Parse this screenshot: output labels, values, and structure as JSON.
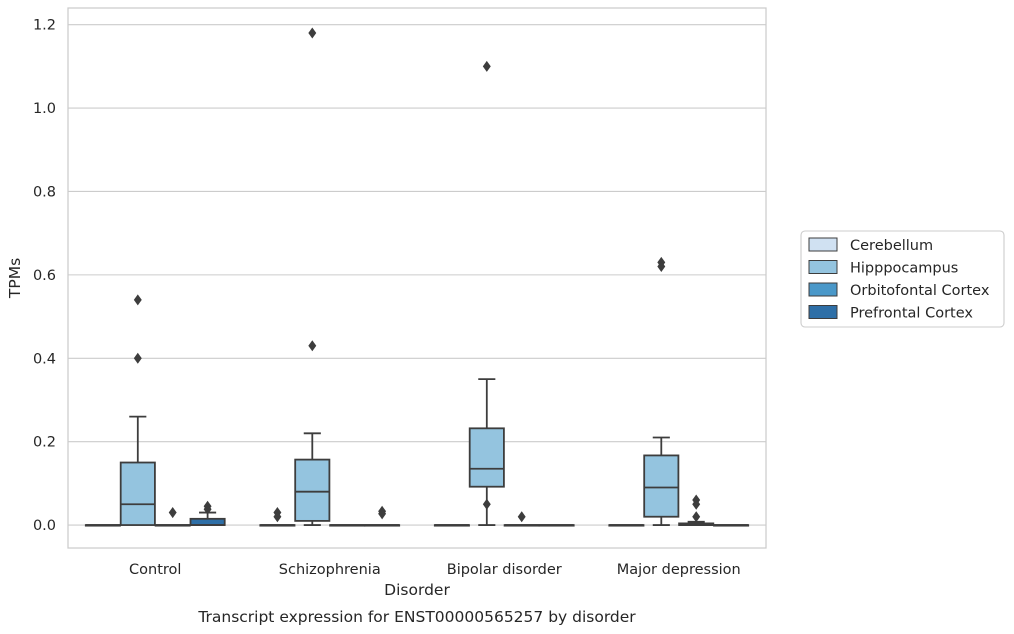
{
  "chart_data": {
    "type": "boxplot",
    "caption": "Transcript expression for ENST00000565257 by disorder",
    "xlabel": "Disorder",
    "ylabel": "TPMs",
    "ylim": [
      -0.055,
      1.24
    ],
    "yticks": [
      0.0,
      0.2,
      0.4,
      0.6,
      0.8,
      1.0,
      1.2
    ],
    "ytick_labels": [
      "0.0",
      "0.2",
      "0.4",
      "0.6",
      "0.8",
      "1.0",
      "1.2"
    ],
    "grid": "horizontal",
    "legend_position": "right",
    "categories": [
      "Control",
      "Schizophrenia",
      "Bipolar disorder",
      "Major depression"
    ],
    "series": [
      {
        "name": "Cerebellum",
        "color": "#d0e1f2",
        "boxes": [
          {
            "q1": 0,
            "median": 0,
            "q3": 0,
            "whisker_low": 0,
            "whisker_high": 0,
            "outliers": []
          },
          {
            "q1": 0,
            "median": 0,
            "q3": 0,
            "whisker_low": 0,
            "whisker_high": 0,
            "outliers": [
              0.03,
              0.02
            ]
          },
          {
            "q1": 0,
            "median": 0,
            "q3": 0,
            "whisker_low": 0,
            "whisker_high": 0,
            "outliers": []
          },
          {
            "q1": 0,
            "median": 0,
            "q3": 0,
            "whisker_low": 0,
            "whisker_high": 0,
            "outliers": []
          }
        ]
      },
      {
        "name": "Hipppocampus",
        "color": "#94c4df",
        "boxes": [
          {
            "q1": 0,
            "median": 0.05,
            "q3": 0.15,
            "whisker_low": 0,
            "whisker_high": 0.26,
            "outliers": [
              0.54,
              0.4
            ]
          },
          {
            "q1": 0.01,
            "median": 0.08,
            "q3": 0.157,
            "whisker_low": 0,
            "whisker_high": 0.22,
            "outliers": [
              1.18,
              0.43
            ]
          },
          {
            "q1": 0.092,
            "median": 0.135,
            "q3": 0.232,
            "whisker_low": 0,
            "whisker_high": 0.35,
            "outliers": [
              1.1,
              0.05
            ]
          },
          {
            "q1": 0.02,
            "median": 0.09,
            "q3": 0.167,
            "whisker_low": 0,
            "whisker_high": 0.21,
            "outliers": [
              0.63,
              0.62
            ]
          }
        ]
      },
      {
        "name": "Orbitofontal Cortex",
        "color": "#4a98c9",
        "boxes": [
          {
            "q1": 0,
            "median": 0,
            "q3": 0,
            "whisker_low": 0,
            "whisker_high": 0,
            "outliers": [
              0.03
            ]
          },
          {
            "q1": 0,
            "median": 0,
            "q3": 0,
            "whisker_low": 0,
            "whisker_high": 0,
            "outliers": []
          },
          {
            "q1": 0,
            "median": 0,
            "q3": 0,
            "whisker_low": 0,
            "whisker_high": 0,
            "outliers": [
              0.02
            ]
          },
          {
            "q1": 0,
            "median": 0,
            "q3": 0.004,
            "whisker_low": 0,
            "whisker_high": 0.008,
            "outliers": [
              0.06,
              0.05,
              0.02
            ]
          }
        ]
      },
      {
        "name": "Prefrontal Cortex",
        "color": "#2e6fa7",
        "boxes": [
          {
            "q1": 0,
            "median": 0,
            "q3": 0.015,
            "whisker_low": 0,
            "whisker_high": 0.03,
            "outliers": [
              0.045,
              0.038
            ]
          },
          {
            "q1": 0,
            "median": 0,
            "q3": 0,
            "whisker_low": 0,
            "whisker_high": 0,
            "outliers": [
              0.033,
              0.027
            ]
          },
          {
            "q1": 0,
            "median": 0,
            "q3": 0,
            "whisker_low": 0,
            "whisker_high": 0,
            "outliers": []
          },
          {
            "q1": 0,
            "median": 0,
            "q3": 0,
            "whisker_low": 0,
            "whisker_high": 0,
            "outliers": []
          }
        ]
      }
    ]
  }
}
